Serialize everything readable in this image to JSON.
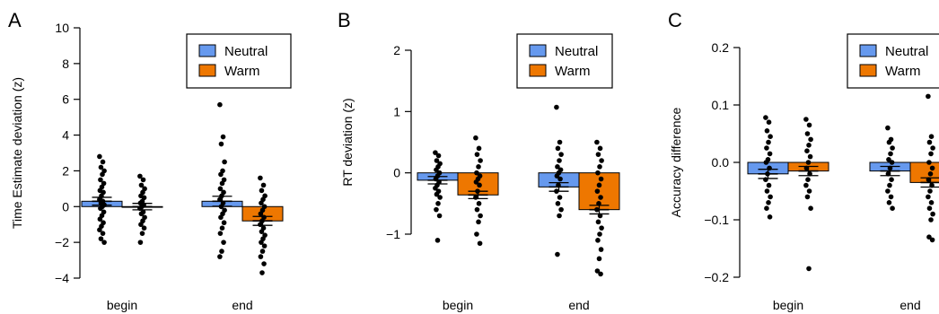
{
  "chart_data": [
    {
      "type": "bar",
      "panel_label": "A",
      "ylabel": "Time Estimate deviation (z)",
      "yticks": [
        -4,
        -2,
        0,
        2,
        4,
        6,
        8,
        10
      ],
      "ylim": [
        -4,
        10
      ],
      "categories": [
        "begin",
        "end"
      ],
      "series": [
        {
          "name": "Neutral",
          "values": [
            0.3,
            0.3
          ],
          "error": [
            0.22,
            0.28
          ]
        },
        {
          "name": "Warm",
          "values": [
            0.0,
            -0.8
          ],
          "error": [
            0.18,
            0.25
          ]
        }
      ],
      "points": [
        [
          [
            2.8,
            2.5,
            2.2,
            2.0,
            1.8,
            1.5,
            1.3,
            1.1,
            0.9,
            0.8,
            0.6,
            0.4,
            0.3,
            0.2,
            0.1,
            0.0,
            -0.1,
            -0.3,
            -0.5,
            -0.7,
            -0.9,
            -1.1,
            -1.3,
            -1.5,
            -1.8,
            -2.0
          ],
          [
            1.7,
            1.5,
            1.2,
            1.0,
            0.8,
            0.6,
            0.5,
            0.3,
            0.2,
            0.1,
            0.0,
            -0.1,
            -0.3,
            -0.4,
            -0.6,
            -0.8,
            -1.0,
            -1.2,
            -1.5,
            -2.0
          ]
        ],
        [
          [
            5.7,
            3.9,
            3.5,
            2.5,
            2.0,
            1.8,
            1.5,
            1.3,
            1.0,
            0.8,
            0.6,
            0.4,
            0.2,
            0.0,
            -0.2,
            -0.4,
            -0.6,
            -0.9,
            -1.2,
            -1.5,
            -2.0,
            -2.5,
            -2.8
          ],
          [
            1.6,
            1.2,
            0.9,
            0.6,
            0.4,
            0.2,
            0.0,
            -0.2,
            -0.4,
            -0.6,
            -0.8,
            -1.0,
            -1.2,
            -1.4,
            -1.6,
            -1.8,
            -2.0,
            -2.2,
            -2.5,
            -2.8,
            -3.2,
            -3.7
          ]
        ]
      ],
      "legend": {
        "position": "top-right",
        "entries": [
          "Neutral",
          "Warm"
        ]
      }
    },
    {
      "type": "bar",
      "panel_label": "B",
      "ylabel": "RT deviation (z)",
      "yticks": [
        -1,
        0,
        1,
        2
      ],
      "ylim": [
        -1,
        2
      ],
      "categories": [
        "begin",
        "end"
      ],
      "series": [
        {
          "name": "Neutral",
          "values": [
            -0.12,
            -0.23
          ],
          "error": [
            0.06,
            0.07
          ]
        },
        {
          "name": "Warm",
          "values": [
            -0.36,
            -0.6
          ],
          "error": [
            0.06,
            0.07
          ]
        }
      ],
      "points": [
        [
          [
            0.33,
            0.28,
            0.2,
            0.15,
            0.1,
            0.05,
            0.0,
            -0.05,
            -0.1,
            -0.15,
            -0.2,
            -0.25,
            -0.3,
            -0.35,
            -0.4,
            -0.5,
            -0.6,
            -0.7,
            -1.1
          ],
          [
            0.57,
            0.4,
            0.3,
            0.2,
            0.1,
            0.0,
            -0.05,
            -0.1,
            -0.15,
            -0.2,
            -0.3,
            -0.4,
            -0.5,
            -0.6,
            -0.7,
            -0.8,
            -1.0,
            -1.15
          ]
        ],
        [
          [
            1.07,
            0.5,
            0.4,
            0.3,
            0.2,
            0.1,
            0.05,
            0.0,
            -0.05,
            -0.1,
            -0.2,
            -0.3,
            -0.4,
            -0.5,
            -0.6,
            -0.7,
            -1.33
          ],
          [
            0.5,
            0.4,
            0.3,
            0.2,
            0.1,
            0.0,
            -0.1,
            -0.2,
            -0.3,
            -0.4,
            -0.5,
            -0.6,
            -0.7,
            -0.8,
            -0.9,
            -1.0,
            -1.1,
            -1.25,
            -1.4,
            -1.6,
            -1.65
          ]
        ]
      ],
      "legend": {
        "position": "top-right",
        "entries": [
          "Neutral",
          "Warm"
        ]
      }
    },
    {
      "type": "bar",
      "panel_label": "C",
      "ylabel": "Accuracy difference",
      "yticks": [
        -0.2,
        -0.1,
        0.0,
        0.1,
        0.2
      ],
      "ytick_labels": [
        "−0.2",
        "−0.1",
        "0.0",
        "0.1",
        "0.2"
      ],
      "ylim": [
        -0.2,
        0.2
      ],
      "categories": [
        "begin",
        "end"
      ],
      "series": [
        {
          "name": "Neutral",
          "values": [
            -0.02,
            -0.015
          ],
          "error": [
            0.008,
            0.008
          ]
        },
        {
          "name": "Warm",
          "values": [
            -0.015,
            -0.035
          ],
          "error": [
            0.008,
            0.008
          ]
        }
      ],
      "points": [
        [
          [
            0.078,
            0.07,
            0.055,
            0.045,
            0.035,
            0.025,
            0.015,
            0.005,
            0.0,
            -0.01,
            -0.02,
            -0.03,
            -0.04,
            -0.05,
            -0.06,
            -0.07,
            -0.08,
            -0.095
          ],
          [
            0.075,
            0.065,
            0.05,
            0.04,
            0.03,
            0.02,
            0.01,
            0.0,
            -0.01,
            -0.02,
            -0.03,
            -0.04,
            -0.05,
            -0.06,
            -0.08,
            -0.185
          ]
        ],
        [
          [
            0.06,
            0.04,
            0.035,
            0.025,
            0.015,
            0.005,
            0.0,
            -0.01,
            -0.02,
            -0.03,
            -0.04,
            -0.05,
            -0.06,
            -0.07,
            -0.08
          ],
          [
            0.115,
            0.045,
            0.035,
            0.025,
            0.015,
            0.0,
            -0.01,
            -0.02,
            -0.03,
            -0.04,
            -0.05,
            -0.06,
            -0.07,
            -0.08,
            -0.09,
            -0.1,
            -0.13,
            -0.135
          ]
        ]
      ],
      "legend": {
        "position": "top-right",
        "entries": [
          "Neutral",
          "Warm"
        ]
      }
    }
  ],
  "colors": {
    "Neutral": "#6699EE",
    "Warm": "#EE7700",
    "points": "#000000",
    "axis": "#000000"
  }
}
